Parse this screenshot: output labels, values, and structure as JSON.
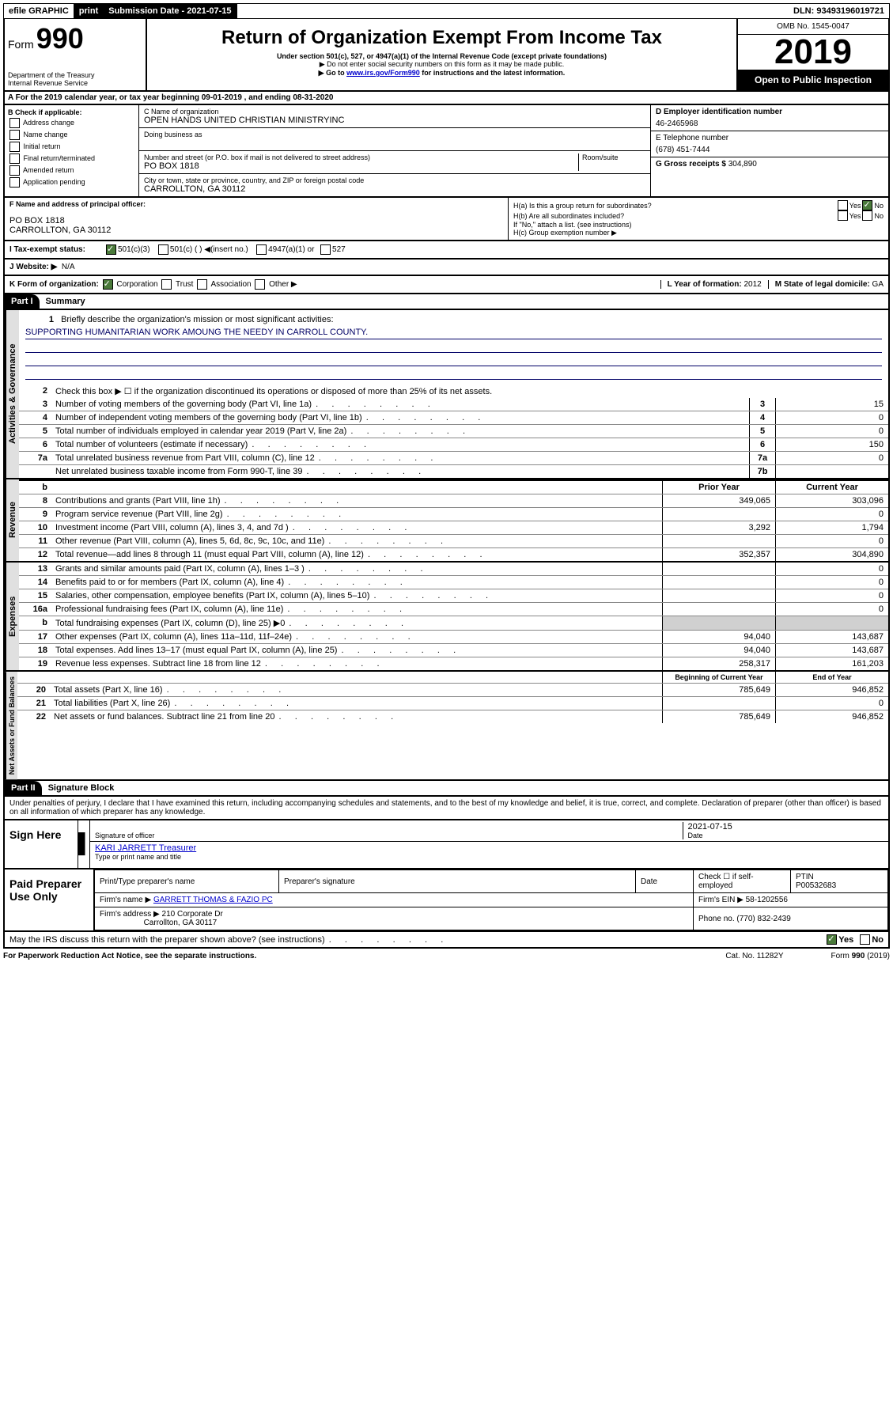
{
  "topbar": {
    "efile": "efile GRAPHIC",
    "print": "print",
    "sub_label": "Submission Date - 2021-07-15",
    "dln": "DLN: 93493196019721"
  },
  "header": {
    "form_word": "Form",
    "form_num": "990",
    "title": "Return of Organization Exempt From Income Tax",
    "subtitle": "Under section 501(c), 527, or 4947(a)(1) of the Internal Revenue Code (except private foundations)",
    "note1": "▶ Do not enter social security numbers on this form as it may be made public.",
    "note2_a": "▶ Go to ",
    "note2_link": "www.irs.gov/Form990",
    "note2_b": " for instructions and the latest information.",
    "dept": "Department of the Treasury",
    "irs": "Internal Revenue Service",
    "omb": "OMB No. 1545-0047",
    "year": "2019",
    "open": "Open to Public Inspection"
  },
  "rowA": "A For the 2019 calendar year, or tax year beginning 09-01-2019    , and ending 08-31-2020",
  "checkB": {
    "title": "B Check if applicable:",
    "items": [
      "Address change",
      "Name change",
      "Initial return",
      "Final return/terminated",
      "Amended return",
      "Application pending"
    ]
  },
  "org": {
    "name_label": "C Name of organization",
    "name": "OPEN HANDS UNITED CHRISTIAN MINISTRYINC",
    "dba_label": "Doing business as",
    "addr_label": "Number and street (or P.O. box if mail is not delivered to street address)",
    "room_label": "Room/suite",
    "addr": "PO BOX 1818",
    "city_label": "City or town, state or province, country, and ZIP or foreign postal code",
    "city": "CARROLLTON, GA  30112"
  },
  "rightD": {
    "ein_label": "D Employer identification number",
    "ein": "46-2465968",
    "phone_label": "E Telephone number",
    "phone": "(678) 451-7444",
    "gross_label": "G Gross receipts $ ",
    "gross": "304,890"
  },
  "sectionF": {
    "label": "F Name and address of principal officer:",
    "addr1": "PO BOX 1818",
    "addr2": "CARROLLTON, GA  30112"
  },
  "sectionH": {
    "ha": "H(a)  Is this a group return for subordinates?",
    "hb": "H(b)  Are all subordinates included?",
    "hb_note": "If \"No,\" attach a list. (see instructions)",
    "hc": "H(c)  Group exemption number ▶",
    "yes": "Yes",
    "no": "No"
  },
  "status": {
    "label": "I   Tax-exempt status:",
    "opt1": "501(c)(3)",
    "opt2": "501(c) (   ) ◀(insert no.)",
    "opt3": "4947(a)(1) or",
    "opt4": "527"
  },
  "website": {
    "label": "J   Website: ▶",
    "val": "N/A"
  },
  "korg": {
    "label": "K Form of organization:",
    "corp": "Corporation",
    "trust": "Trust",
    "assoc": "Association",
    "other": "Other ▶",
    "year_label": "L Year of formation: ",
    "year": "2012",
    "state_label": "M State of legal domicile: ",
    "state": "GA"
  },
  "part1": {
    "num": "Part I",
    "title": "Summary"
  },
  "governance": {
    "label": "Activities & Governance",
    "l1": "Briefly describe the organization's mission or most significant activities:",
    "l1v": "SUPPORTING HUMANITARIAN WORK AMOUNG THE NEEDY IN CARROLL COUNTY.",
    "l2": "Check this box ▶ ☐  if the organization discontinued its operations or disposed of more than 25% of its net assets.",
    "lines": [
      {
        "n": "3",
        "t": "Number of voting members of the governing body (Part VI, line 1a)",
        "b": "3",
        "v": "15"
      },
      {
        "n": "4",
        "t": "Number of independent voting members of the governing body (Part VI, line 1b)",
        "b": "4",
        "v": "0"
      },
      {
        "n": "5",
        "t": "Total number of individuals employed in calendar year 2019 (Part V, line 2a)",
        "b": "5",
        "v": "0"
      },
      {
        "n": "6",
        "t": "Total number of volunteers (estimate if necessary)",
        "b": "6",
        "v": "150"
      },
      {
        "n": "7a",
        "t": "Total unrelated business revenue from Part VIII, column (C), line 12",
        "b": "7a",
        "v": "0"
      },
      {
        "n": "",
        "t": "Net unrelated business taxable income from Form 990-T, line 39",
        "b": "7b",
        "v": ""
      }
    ]
  },
  "revenue": {
    "label": "Revenue",
    "h1": "Prior Year",
    "h2": "Current Year",
    "lines": [
      {
        "n": "8",
        "t": "Contributions and grants (Part VIII, line 1h)",
        "p": "349,065",
        "c": "303,096"
      },
      {
        "n": "9",
        "t": "Program service revenue (Part VIII, line 2g)",
        "p": "",
        "c": "0"
      },
      {
        "n": "10",
        "t": "Investment income (Part VIII, column (A), lines 3, 4, and 7d )",
        "p": "3,292",
        "c": "1,794"
      },
      {
        "n": "11",
        "t": "Other revenue (Part VIII, column (A), lines 5, 6d, 8c, 9c, 10c, and 11e)",
        "p": "",
        "c": "0"
      },
      {
        "n": "12",
        "t": "Total revenue—add lines 8 through 11 (must equal Part VIII, column (A), line 12)",
        "p": "352,357",
        "c": "304,890"
      }
    ]
  },
  "expenses": {
    "label": "Expenses",
    "lines": [
      {
        "n": "13",
        "t": "Grants and similar amounts paid (Part IX, column (A), lines 1–3 )",
        "p": "",
        "c": "0"
      },
      {
        "n": "14",
        "t": "Benefits paid to or for members (Part IX, column (A), line 4)",
        "p": "",
        "c": "0"
      },
      {
        "n": "15",
        "t": "Salaries, other compensation, employee benefits (Part IX, column (A), lines 5–10)",
        "p": "",
        "c": "0"
      },
      {
        "n": "16a",
        "t": "Professional fundraising fees (Part IX, column (A), line 11e)",
        "p": "",
        "c": "0"
      },
      {
        "n": "b",
        "t": "Total fundraising expenses (Part IX, column (D), line 25) ▶0",
        "p": "shaded",
        "c": "shaded"
      },
      {
        "n": "17",
        "t": "Other expenses (Part IX, column (A), lines 11a–11d, 11f–24e)",
        "p": "94,040",
        "c": "143,687"
      },
      {
        "n": "18",
        "t": "Total expenses. Add lines 13–17 (must equal Part IX, column (A), line 25)",
        "p": "94,040",
        "c": "143,687"
      },
      {
        "n": "19",
        "t": "Revenue less expenses. Subtract line 18 from line 12",
        "p": "258,317",
        "c": "161,203"
      }
    ]
  },
  "netassets": {
    "label": "Net Assets or Fund Balances",
    "h1": "Beginning of Current Year",
    "h2": "End of Year",
    "lines": [
      {
        "n": "20",
        "t": "Total assets (Part X, line 16)",
        "p": "785,649",
        "c": "946,852"
      },
      {
        "n": "21",
        "t": "Total liabilities (Part X, line 26)",
        "p": "",
        "c": "0"
      },
      {
        "n": "22",
        "t": "Net assets or fund balances. Subtract line 21 from line 20",
        "p": "785,649",
        "c": "946,852"
      }
    ]
  },
  "part2": {
    "num": "Part II",
    "title": "Signature Block"
  },
  "perjury": "Under penalties of perjury, I declare that I have examined this return, including accompanying schedules and statements, and to the best of my knowledge and belief, it is true, correct, and complete. Declaration of preparer (other than officer) is based on all information of which preparer has any knowledge.",
  "sign": {
    "label": "Sign Here",
    "sig_officer": "Signature of officer",
    "date": "2021-07-15",
    "date_label": "Date",
    "name": "KARI JARRETT Treasurer",
    "name_label": "Type or print name and title"
  },
  "paid": {
    "label": "Paid Preparer Use Only",
    "h1": "Print/Type preparer's name",
    "h2": "Preparer's signature",
    "h3": "Date",
    "check_label": "Check ☐ if self-employed",
    "ptin_label": "PTIN",
    "ptin": "P00532683",
    "firm_label": "Firm's name    ▶",
    "firm": "GARRETT THOMAS & FAZIO PC",
    "ein_label": "Firm's EIN ▶",
    "ein": "58-1202556",
    "addr_label": "Firm's address ▶",
    "addr1": "210 Corporate Dr",
    "addr2": "Carrollton, GA  30117",
    "phone_label": "Phone no.",
    "phone": "(770) 832-2439"
  },
  "discuss": "May the IRS discuss this return with the preparer shown above? (see instructions)",
  "footer": {
    "pra": "For Paperwork Reduction Act Notice, see the separate instructions.",
    "cat": "Cat. No. 11282Y",
    "form": "Form 990 (2019)"
  }
}
